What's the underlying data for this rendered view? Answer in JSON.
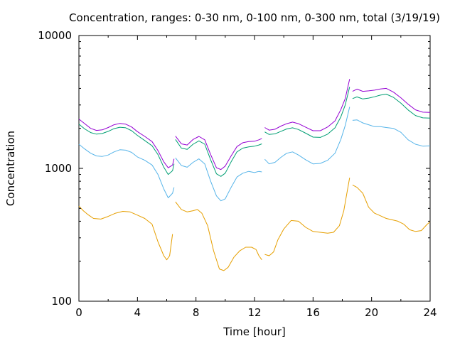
{
  "chart_data": {
    "type": "line",
    "title": "Concentration, ranges: 0-30 nm, 0-100 nm, 0-300 nm, total (3/19/19)",
    "xlabel": "Time [hour]",
    "ylabel": "Concentration",
    "xlim": [
      0,
      24
    ],
    "ylim": [
      100,
      10000
    ],
    "yscale": "log",
    "xticks": [
      "0",
      "4",
      "8",
      "12",
      "16",
      "20",
      "24"
    ],
    "yticks": [
      "100",
      "1000",
      "10000"
    ],
    "grid": false,
    "series": [
      {
        "color": "#e69f00",
        "segments": [
          [
            [
              0,
              520
            ],
            [
              0.3,
              480
            ],
            [
              0.6,
              450
            ],
            [
              1,
              420
            ],
            [
              1.5,
              415
            ],
            [
              2,
              435
            ],
            [
              2.5,
              460
            ],
            [
              3,
              475
            ],
            [
              3.5,
              470
            ],
            [
              4,
              445
            ],
            [
              4.5,
              420
            ],
            [
              5,
              380
            ],
            [
              5.4,
              280
            ],
            [
              5.8,
              220
            ],
            [
              6,
              205
            ],
            [
              6.2,
              220
            ],
            [
              6.4,
              320
            ]
          ],
          [
            [
              6.6,
              560
            ],
            [
              7,
              490
            ],
            [
              7.4,
              470
            ],
            [
              7.8,
              480
            ],
            [
              8.1,
              490
            ],
            [
              8.4,
              460
            ],
            [
              8.8,
              370
            ],
            [
              9.2,
              240
            ],
            [
              9.6,
              175
            ],
            [
              9.9,
              170
            ],
            [
              10.2,
              180
            ],
            [
              10.6,
              215
            ],
            [
              11,
              240
            ],
            [
              11.4,
              255
            ],
            [
              11.8,
              255
            ],
            [
              12.1,
              245
            ],
            [
              12.3,
              220
            ],
            [
              12.5,
              205
            ]
          ],
          [
            [
              12.7,
              225
            ],
            [
              13,
              220
            ],
            [
              13.3,
              235
            ],
            [
              13.6,
              290
            ],
            [
              14,
              350
            ],
            [
              14.5,
              405
            ],
            [
              15,
              400
            ],
            [
              15.5,
              360
            ],
            [
              16,
              335
            ],
            [
              16.5,
              330
            ],
            [
              17,
              325
            ],
            [
              17.4,
              330
            ],
            [
              17.8,
              370
            ],
            [
              18.1,
              480
            ],
            [
              18.3,
              640
            ],
            [
              18.5,
              850
            ]
          ],
          [
            [
              18.7,
              750
            ],
            [
              19,
              720
            ],
            [
              19.4,
              650
            ],
            [
              19.8,
              510
            ],
            [
              20.2,
              460
            ],
            [
              20.6,
              440
            ],
            [
              21,
              420
            ],
            [
              21.4,
              410
            ],
            [
              21.8,
              400
            ],
            [
              22.2,
              380
            ],
            [
              22.6,
              345
            ],
            [
              23,
              335
            ],
            [
              23.4,
              340
            ],
            [
              23.8,
              380
            ],
            [
              24,
              395
            ]
          ]
        ]
      },
      {
        "color": "#56b4e9",
        "segments": [
          [
            [
              0,
              1520
            ],
            [
              0.4,
              1400
            ],
            [
              0.8,
              1300
            ],
            [
              1.2,
              1240
            ],
            [
              1.6,
              1230
            ],
            [
              2,
              1260
            ],
            [
              2.4,
              1330
            ],
            [
              2.8,
              1380
            ],
            [
              3.2,
              1370
            ],
            [
              3.6,
              1320
            ],
            [
              4,
              1220
            ],
            [
              4.5,
              1150
            ],
            [
              5,
              1060
            ],
            [
              5.4,
              900
            ],
            [
              5.8,
              700
            ],
            [
              6.1,
              600
            ],
            [
              6.4,
              650
            ],
            [
              6.5,
              720
            ]
          ],
          [
            [
              6.6,
              1200
            ],
            [
              7,
              1050
            ],
            [
              7.4,
              1020
            ],
            [
              7.8,
              1110
            ],
            [
              8.2,
              1180
            ],
            [
              8.6,
              1080
            ],
            [
              9,
              800
            ],
            [
              9.4,
              620
            ],
            [
              9.7,
              570
            ],
            [
              10,
              590
            ],
            [
              10.4,
              720
            ],
            [
              10.8,
              860
            ],
            [
              11.2,
              920
            ],
            [
              11.6,
              950
            ],
            [
              12,
              930
            ],
            [
              12.3,
              950
            ],
            [
              12.5,
              940
            ]
          ],
          [
            [
              12.7,
              1170
            ],
            [
              13,
              1080
            ],
            [
              13.4,
              1110
            ],
            [
              13.8,
              1210
            ],
            [
              14.2,
              1300
            ],
            [
              14.6,
              1330
            ],
            [
              15,
              1260
            ],
            [
              15.5,
              1160
            ],
            [
              16,
              1080
            ],
            [
              16.5,
              1090
            ],
            [
              17,
              1150
            ],
            [
              17.5,
              1300
            ],
            [
              17.9,
              1650
            ],
            [
              18.2,
              2100
            ],
            [
              18.5,
              2900
            ]
          ],
          [
            [
              18.7,
              2300
            ],
            [
              19,
              2320
            ],
            [
              19.4,
              2200
            ],
            [
              19.8,
              2130
            ],
            [
              20.2,
              2060
            ],
            [
              20.6,
              2060
            ],
            [
              21,
              2030
            ],
            [
              21.5,
              2000
            ],
            [
              22,
              1870
            ],
            [
              22.5,
              1640
            ],
            [
              23,
              1520
            ],
            [
              23.5,
              1470
            ],
            [
              24,
              1480
            ]
          ]
        ]
      },
      {
        "color": "#009e73",
        "segments": [
          [
            [
              0,
              2150
            ],
            [
              0.4,
              1980
            ],
            [
              0.8,
              1860
            ],
            [
              1.2,
              1810
            ],
            [
              1.6,
              1830
            ],
            [
              2,
              1900
            ],
            [
              2.4,
              1990
            ],
            [
              2.8,
              2040
            ],
            [
              3.2,
              2020
            ],
            [
              3.6,
              1920
            ],
            [
              4,
              1770
            ],
            [
              4.5,
              1620
            ],
            [
              5,
              1480
            ],
            [
              5.4,
              1270
            ],
            [
              5.8,
              1020
            ],
            [
              6.1,
              900
            ],
            [
              6.4,
              960
            ],
            [
              6.5,
              1080
            ]
          ],
          [
            [
              6.6,
              1650
            ],
            [
              7,
              1420
            ],
            [
              7.4,
              1390
            ],
            [
              7.8,
              1520
            ],
            [
              8.2,
              1610
            ],
            [
              8.6,
              1520
            ],
            [
              9,
              1160
            ],
            [
              9.4,
              910
            ],
            [
              9.7,
              870
            ],
            [
              10,
              920
            ],
            [
              10.4,
              1120
            ],
            [
              10.8,
              1330
            ],
            [
              11.2,
              1420
            ],
            [
              11.6,
              1450
            ],
            [
              12,
              1470
            ],
            [
              12.3,
              1500
            ],
            [
              12.5,
              1530
            ]
          ],
          [
            [
              12.7,
              1880
            ],
            [
              13,
              1800
            ],
            [
              13.4,
              1820
            ],
            [
              13.8,
              1900
            ],
            [
              14.2,
              1980
            ],
            [
              14.6,
              2020
            ],
            [
              15,
              1960
            ],
            [
              15.5,
              1840
            ],
            [
              16,
              1720
            ],
            [
              16.5,
              1710
            ],
            [
              17,
              1810
            ],
            [
              17.5,
              2020
            ],
            [
              17.9,
              2440
            ],
            [
              18.2,
              3000
            ],
            [
              18.5,
              4100
            ]
          ],
          [
            [
              18.7,
              3350
            ],
            [
              19,
              3450
            ],
            [
              19.4,
              3330
            ],
            [
              19.8,
              3380
            ],
            [
              20.2,
              3460
            ],
            [
              20.6,
              3560
            ],
            [
              21,
              3620
            ],
            [
              21.5,
              3420
            ],
            [
              22,
              3100
            ],
            [
              22.5,
              2750
            ],
            [
              23,
              2500
            ],
            [
              23.5,
              2400
            ],
            [
              24,
              2390
            ]
          ]
        ]
      },
      {
        "color": "#9400d3",
        "segments": [
          [
            [
              0,
              2350
            ],
            [
              0.4,
              2170
            ],
            [
              0.8,
              2000
            ],
            [
              1.2,
              1930
            ],
            [
              1.6,
              1950
            ],
            [
              2,
              2030
            ],
            [
              2.4,
              2130
            ],
            [
              2.8,
              2180
            ],
            [
              3.2,
              2150
            ],
            [
              3.6,
              2050
            ],
            [
              4,
              1890
            ],
            [
              4.5,
              1740
            ],
            [
              5,
              1590
            ],
            [
              5.4,
              1360
            ],
            [
              5.8,
              1120
            ],
            [
              6.1,
              1010
            ],
            [
              6.4,
              1060
            ],
            [
              6.5,
              1180
            ]
          ],
          [
            [
              6.6,
              1750
            ],
            [
              7,
              1530
            ],
            [
              7.4,
              1500
            ],
            [
              7.8,
              1650
            ],
            [
              8.2,
              1740
            ],
            [
              8.6,
              1640
            ],
            [
              9,
              1270
            ],
            [
              9.4,
              1010
            ],
            [
              9.7,
              980
            ],
            [
              10,
              1040
            ],
            [
              10.4,
              1240
            ],
            [
              10.8,
              1460
            ],
            [
              11.2,
              1560
            ],
            [
              11.6,
              1590
            ],
            [
              12,
              1600
            ],
            [
              12.3,
              1640
            ],
            [
              12.5,
              1680
            ]
          ],
          [
            [
              12.7,
              2030
            ],
            [
              13,
              1940
            ],
            [
              13.4,
              1970
            ],
            [
              13.8,
              2080
            ],
            [
              14.2,
              2170
            ],
            [
              14.6,
              2230
            ],
            [
              15,
              2170
            ],
            [
              15.5,
              2040
            ],
            [
              16,
              1920
            ],
            [
              16.5,
              1920
            ],
            [
              17,
              2050
            ],
            [
              17.5,
              2280
            ],
            [
              17.9,
              2770
            ],
            [
              18.2,
              3350
            ],
            [
              18.5,
              4700
            ]
          ],
          [
            [
              18.7,
              3800
            ],
            [
              19,
              3950
            ],
            [
              19.4,
              3800
            ],
            [
              19.8,
              3830
            ],
            [
              20.2,
              3880
            ],
            [
              20.6,
              3960
            ],
            [
              21,
              4000
            ],
            [
              21.5,
              3750
            ],
            [
              22,
              3400
            ],
            [
              22.5,
              3040
            ],
            [
              23,
              2760
            ],
            [
              23.5,
              2650
            ],
            [
              24,
              2640
            ]
          ]
        ]
      }
    ]
  }
}
